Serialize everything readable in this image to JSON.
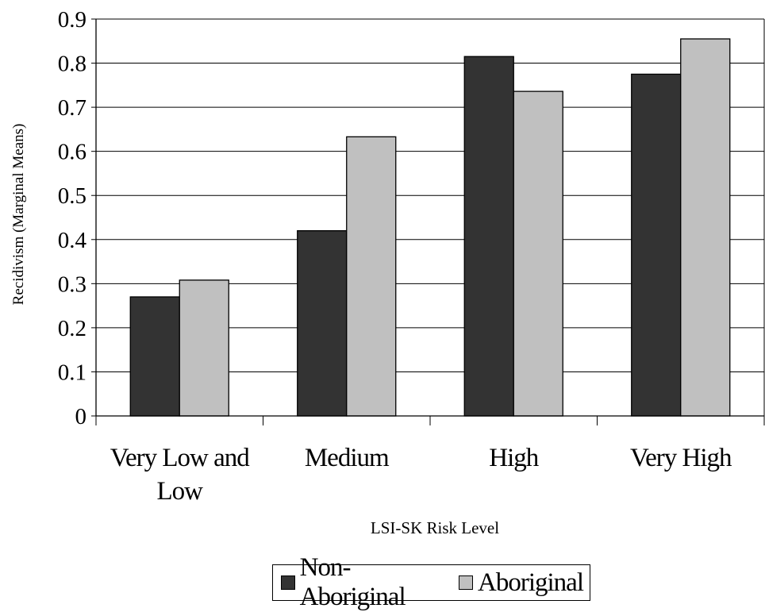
{
  "chart_data": {
    "type": "bar",
    "categories": [
      "Very Low and Low",
      "Medium",
      "High",
      "Very High"
    ],
    "category_lines": [
      [
        "Very Low and",
        "Low"
      ],
      [
        "Medium"
      ],
      [
        "High"
      ],
      [
        "Very High"
      ]
    ],
    "series": [
      {
        "name": "Non-Aboriginal",
        "color": "#333333",
        "values": [
          0.27,
          0.42,
          0.815,
          0.775
        ]
      },
      {
        "name": "Aboriginal",
        "color": "#c0c0c0",
        "values": [
          0.308,
          0.633,
          0.736,
          0.855
        ]
      }
    ],
    "xlabel": "LSI-SK Risk Level",
    "ylabel": "Recidivism (Marginal Means)",
    "ylim": [
      0,
      0.9
    ],
    "yticks": [
      "0",
      "0.1",
      "0.2",
      "0.3",
      "0.4",
      "0.5",
      "0.6",
      "0.7",
      "0.8",
      "0.9"
    ],
    "grid": true,
    "legend_position": "bottom"
  }
}
